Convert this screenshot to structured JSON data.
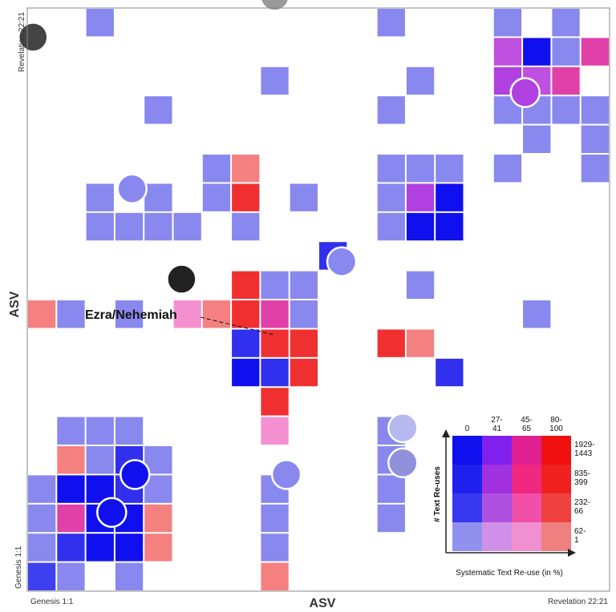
{
  "chart_data": {
    "type": "heatmap",
    "xlabel": "ASV",
    "ylabel": "ASV",
    "x_start_label": "Genesis 1:1",
    "x_end_label": "Revelation 22:21",
    "y_start_label": "Genesis 1:1",
    "y_end_label": "Revelation 22:21",
    "annotation": "Ezra/Nehemiah",
    "grid_cells": 20,
    "cells": [
      {
        "col": 0,
        "row": 0,
        "color": "#3c40ee"
      },
      {
        "col": 1,
        "row": 0,
        "color": "#8888ee"
      },
      {
        "col": 3,
        "row": 0,
        "color": "#8888ee"
      },
      {
        "col": 0,
        "row": 1,
        "color": "#8888ee"
      },
      {
        "col": 1,
        "row": 1,
        "color": "#3030ee"
      },
      {
        "col": 2,
        "row": 1,
        "color": "#1010ee"
      },
      {
        "col": 3,
        "row": 1,
        "color": "#1010ee"
      },
      {
        "col": 4,
        "row": 1,
        "color": "#f58080"
      },
      {
        "col": 0,
        "row": 2,
        "color": "#8888ee"
      },
      {
        "col": 1,
        "row": 2,
        "color": "#e040a8"
      },
      {
        "col": 2,
        "row": 2,
        "color": "#1010ee"
      },
      {
        "col": 3,
        "row": 2,
        "color": "#1010ee"
      },
      {
        "col": 4,
        "row": 2,
        "color": "#f58080"
      },
      {
        "col": 0,
        "row": 3,
        "color": "#8888ee"
      },
      {
        "col": 1,
        "row": 3,
        "color": "#1010ee"
      },
      {
        "col": 2,
        "row": 3,
        "color": "#1010ee"
      },
      {
        "col": 3,
        "row": 3,
        "color": "#3030ee"
      },
      {
        "col": 4,
        "row": 3,
        "color": "#8888ee"
      },
      {
        "col": 1,
        "row": 4,
        "color": "#f58080"
      },
      {
        "col": 2,
        "row": 4,
        "color": "#8888ee"
      },
      {
        "col": 3,
        "row": 4,
        "color": "#3030ee"
      },
      {
        "col": 4,
        "row": 4,
        "color": "#8888ee"
      },
      {
        "col": 1,
        "row": 5,
        "color": "#8888ee"
      },
      {
        "col": 2,
        "row": 5,
        "color": "#8888ee"
      },
      {
        "col": 3,
        "row": 5,
        "color": "#8888ee"
      },
      {
        "col": 8,
        "row": 0,
        "color": "#f58080"
      },
      {
        "col": 8,
        "row": 1,
        "color": "#8888ee"
      },
      {
        "col": 8,
        "row": 2,
        "color": "#8888ee"
      },
      {
        "col": 8,
        "row": 3,
        "color": "#8888ee"
      },
      {
        "col": 8,
        "row": 5,
        "color": "#f590d0"
      },
      {
        "col": 12,
        "row": 2,
        "color": "#8888ee"
      },
      {
        "col": 12,
        "row": 3,
        "color": "#8888ee"
      },
      {
        "col": 12,
        "row": 4,
        "color": "#8888ee"
      },
      {
        "col": 12,
        "row": 5,
        "color": "#8888ee"
      },
      {
        "col": 12,
        "row": 8,
        "color": "#f03030"
      },
      {
        "col": 13,
        "row": 8,
        "color": "#f58080"
      },
      {
        "col": 14,
        "row": 7,
        "color": "#3030ee"
      },
      {
        "col": 0,
        "row": 9,
        "color": "#f58080"
      },
      {
        "col": 1,
        "row": 9,
        "color": "#8888ee"
      },
      {
        "col": 3,
        "row": 9,
        "color": "#8888ee"
      },
      {
        "col": 5,
        "row": 9,
        "color": "#f590d0"
      },
      {
        "col": 6,
        "row": 9,
        "color": "#f58080"
      },
      {
        "col": 7,
        "row": 9,
        "color": "#f03030"
      },
      {
        "col": 8,
        "row": 9,
        "color": "#e040a8"
      },
      {
        "col": 9,
        "row": 9,
        "color": "#8888ee"
      },
      {
        "col": 7,
        "row": 8,
        "color": "#3030ee"
      },
      {
        "col": 8,
        "row": 8,
        "color": "#f03030"
      },
      {
        "col": 9,
        "row": 8,
        "color": "#f03030"
      },
      {
        "col": 7,
        "row": 7,
        "color": "#1010ee"
      },
      {
        "col": 8,
        "row": 7,
        "color": "#3030ee"
      },
      {
        "col": 9,
        "row": 7,
        "color": "#f03030"
      },
      {
        "col": 8,
        "row": 6,
        "color": "#f03030"
      },
      {
        "col": 7,
        "row": 10,
        "color": "#f03030"
      },
      {
        "col": 8,
        "row": 10,
        "color": "#8888ee"
      },
      {
        "col": 9,
        "row": 10,
        "color": "#8888ee"
      },
      {
        "col": 13,
        "row": 10,
        "color": "#8888ee"
      },
      {
        "col": 17,
        "row": 9,
        "color": "#8888ee"
      },
      {
        "col": 2,
        "row": 12,
        "color": "#8888ee"
      },
      {
        "col": 3,
        "row": 12,
        "color": "#8888ee"
      },
      {
        "col": 4,
        "row": 12,
        "color": "#8888ee"
      },
      {
        "col": 5,
        "row": 12,
        "color": "#8888ee"
      },
      {
        "col": 2,
        "row": 13,
        "color": "#8888ee"
      },
      {
        "col": 4,
        "row": 13,
        "color": "#8888ee"
      },
      {
        "col": 6,
        "row": 13,
        "color": "#8888ee"
      },
      {
        "col": 7,
        "row": 12,
        "color": "#8888ee"
      },
      {
        "col": 7,
        "row": 13,
        "color": "#f03030"
      },
      {
        "col": 7,
        "row": 14,
        "color": "#f58080"
      },
      {
        "col": 6,
        "row": 14,
        "color": "#8888ee"
      },
      {
        "col": 9,
        "row": 13,
        "color": "#8888ee"
      },
      {
        "col": 12,
        "row": 12,
        "color": "#8888ee"
      },
      {
        "col": 13,
        "row": 12,
        "color": "#1010ee"
      },
      {
        "col": 14,
        "row": 12,
        "color": "#1010ee"
      },
      {
        "col": 12,
        "row": 13,
        "color": "#8888ee"
      },
      {
        "col": 13,
        "row": 13,
        "color": "#b040e0"
      },
      {
        "col": 14,
        "row": 13,
        "color": "#1010ee"
      },
      {
        "col": 12,
        "row": 14,
        "color": "#8888ee"
      },
      {
        "col": 13,
        "row": 14,
        "color": "#8888ee"
      },
      {
        "col": 14,
        "row": 14,
        "color": "#8888ee"
      },
      {
        "col": 16,
        "row": 14,
        "color": "#8888ee"
      },
      {
        "col": 19,
        "row": 14,
        "color": "#8888ee"
      },
      {
        "col": 12,
        "row": 16,
        "color": "#8888ee"
      },
      {
        "col": 4,
        "row": 16,
        "color": "#8888ee"
      },
      {
        "col": 16,
        "row": 16,
        "color": "#8888ee"
      },
      {
        "col": 17,
        "row": 16,
        "color": "#8888ee"
      },
      {
        "col": 18,
        "row": 16,
        "color": "#8888ee"
      },
      {
        "col": 16,
        "row": 17,
        "color": "#b040e0"
      },
      {
        "col": 17,
        "row": 17,
        "color": "#c050e0"
      },
      {
        "col": 18,
        "row": 17,
        "color": "#e040a8"
      },
      {
        "col": 16,
        "row": 18,
        "color": "#c050e0"
      },
      {
        "col": 17,
        "row": 18,
        "color": "#1010ee"
      },
      {
        "col": 18,
        "row": 18,
        "color": "#8888ee"
      },
      {
        "col": 19,
        "row": 18,
        "color": "#e040a8"
      },
      {
        "col": 18,
        "row": 19,
        "color": "#8888ee"
      },
      {
        "col": 8,
        "row": 17,
        "color": "#8888ee"
      },
      {
        "col": 12,
        "row": 19,
        "color": "#8888ee"
      },
      {
        "col": 2,
        "row": 19,
        "color": "#8888ee"
      },
      {
        "col": 16,
        "row": 19,
        "color": "#8888ee"
      },
      {
        "col": 17,
        "row": 15,
        "color": "#8888ee"
      },
      {
        "col": 19,
        "row": 15,
        "color": "#8888ee"
      },
      {
        "col": 13,
        "row": 17,
        "color": "#8888ee"
      },
      {
        "col": 19,
        "row": 16,
        "color": "#8888ee"
      },
      {
        "col": 10,
        "row": 11,
        "color": "#3030ee"
      }
    ],
    "highlight_markers": [
      {
        "col": 3.2,
        "row": 3.5,
        "color": "#1010ee"
      },
      {
        "col": 2.4,
        "row": 2.2,
        "color": "#1010ee"
      },
      {
        "col": 3.1,
        "row": 13.3,
        "color": "#8888ee"
      },
      {
        "col": 16.6,
        "row": 16.6,
        "color": "#b040e0"
      },
      {
        "col": 10.3,
        "row": 10.8,
        "color": "#8888ee"
      },
      {
        "col": 8.4,
        "row": 3.5,
        "color": "#8888ee"
      },
      {
        "col": 12.4,
        "row": 5.1,
        "color": "#b8b8f0"
      },
      {
        "col": 12.4,
        "row": 3.9,
        "color": "#9090dd"
      },
      {
        "col": 4.8,
        "row": 10.2,
        "color": "#222222"
      },
      {
        "col": 8.0,
        "row": 19.9,
        "color": "#999999"
      },
      {
        "col": -0.3,
        "row": 18.5,
        "color": "#444444"
      },
      {
        "col": 14.9,
        "row": 3.4,
        "color": "#aaaaaa"
      }
    ],
    "legend": {
      "x_title": "Systematic Text Re-use (in %)",
      "y_title": "# Text Re-uses",
      "x_categories": [
        "0",
        "27-\n41",
        "45-\n65",
        "80-\n100"
      ],
      "y_categories": [
        "1929-\n1443",
        "835-\n399",
        "232-\n66",
        "62-\n1"
      ],
      "colors": [
        [
          "#1010ee",
          "#8020ee",
          "#e02090",
          "#f01010"
        ],
        [
          "#2020ee",
          "#a030e0",
          "#f02880",
          "#f02020"
        ],
        [
          "#3838ee",
          "#b050e0",
          "#f050a8",
          "#f04040"
        ],
        [
          "#9090ee",
          "#d090e8",
          "#f090d0",
          "#f08080"
        ]
      ]
    }
  }
}
